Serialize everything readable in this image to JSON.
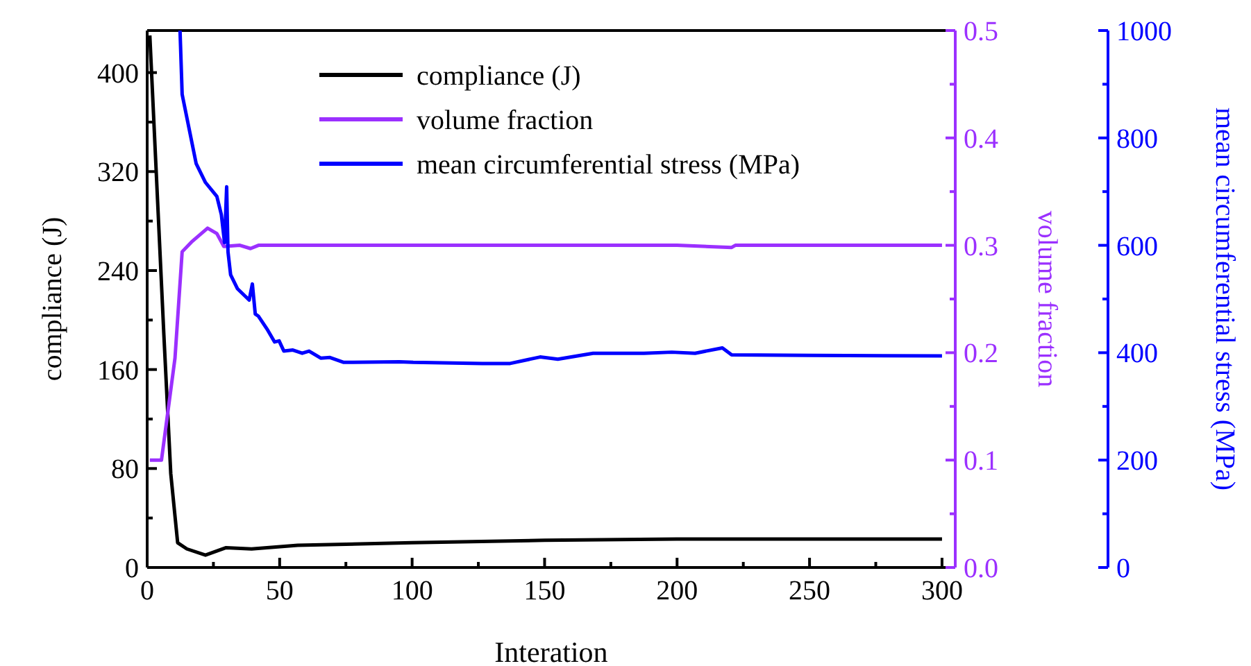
{
  "chart_data": {
    "type": "line",
    "xlabel": "Interation",
    "ylabel": "compliance (J)",
    "y2label": "volume fraction",
    "y3label": "mean circumferential stress (MPa)",
    "xlim": [
      0,
      305
    ],
    "xticks": [
      0,
      {
        "value": 25,
        "label": null
      },
      50,
      {
        "value": 75,
        "label": null
      },
      100,
      {
        "value": 125,
        "label": null
      },
      150,
      {
        "value": 175,
        "label": null
      },
      200,
      {
        "value": 225,
        "label": null
      },
      250,
      {
        "value": 275,
        "label": null
      },
      300
    ],
    "ylim": [
      0,
      434
    ],
    "yticks": [
      0,
      {
        "value": 40,
        "label": null
      },
      80,
      {
        "value": 120,
        "label": null
      },
      160,
      {
        "value": 200,
        "label": null
      },
      240,
      {
        "value": 280,
        "label": null
      },
      320,
      {
        "value": 360,
        "label": null
      },
      400
    ],
    "y2lim": [
      0,
      0.5
    ],
    "y2ticks": [
      {
        "value": 0,
        "label": "0.0"
      },
      {
        "value": 0.05,
        "label": null
      },
      0.1,
      {
        "value": 0.15,
        "label": null
      },
      0.2,
      {
        "value": 0.25,
        "label": null
      },
      0.3,
      {
        "value": 0.35,
        "label": null
      },
      0.4,
      {
        "value": 0.45,
        "label": null
      },
      0.5
    ],
    "y3lim": [
      0,
      1000
    ],
    "y3ticks": [
      0,
      {
        "value": 100,
        "label": null
      },
      200,
      {
        "value": 300,
        "label": null
      },
      400,
      {
        "value": 500,
        "label": null
      },
      600,
      {
        "value": 700,
        "label": null
      },
      800,
      {
        "value": 900,
        "label": null
      },
      1000
    ],
    "legend": "top",
    "grid": false,
    "line_style": "solid",
    "series": [
      {
        "name": "compliance (J)",
        "color": "#000000",
        "x": [
          1,
          6.3,
          8.9,
          11.5,
          15,
          22,
          29.8,
          39.4,
          56.8,
          100,
          150,
          200,
          250,
          300
        ],
        "values": [
          430,
          188,
          76,
          20,
          15,
          10,
          16,
          15,
          18,
          20,
          22,
          23,
          23,
          23
        ]
      },
      {
        "name": "volume fraction",
        "color": "#9b30ff",
        "axis": "y2",
        "x": [
          1,
          5.4,
          10.5,
          13.2,
          16.7,
          22.8,
          26.3,
          28.9,
          35,
          39,
          42,
          60,
          100,
          150,
          200,
          220.6,
          222,
          250,
          300
        ],
        "values": [
          0.1,
          0.1,
          0.195,
          0.294,
          0.303,
          0.316,
          0.311,
          0.299,
          0.3,
          0.297,
          0.3,
          0.3,
          0.3,
          0.3,
          0.3,
          0.298,
          0.3,
          0.3,
          0.3
        ]
      },
      {
        "name": "mean circumferential stress (MPa)",
        "color": "#0000ff",
        "axis": "y3",
        "x": [
          12.4,
          13.2,
          18.5,
          22,
          26.3,
          28,
          29.2,
          30,
          30.5,
          31.5,
          34.1,
          38.5,
          39.7,
          40.8,
          42,
          45.5,
          48.1,
          49.8,
          51.6,
          55,
          58.5,
          61.1,
          65.5,
          69,
          74.2,
          95.1,
          100.4,
          126.5,
          137,
          148.3,
          155,
          168.3,
          177,
          187.5,
          198,
          206.8,
          217.1,
          220.6,
          250,
          300
        ],
        "values": [
          1000,
          881,
          752,
          717,
          691,
          657,
          605,
          709,
          588,
          545,
          519,
          498,
          528,
          472,
          468,
          442,
          420,
          422,
          403,
          405,
          399,
          403,
          390,
          391,
          382,
          383,
          382,
          380,
          380,
          392,
          388,
          399,
          399,
          399,
          401,
          399,
          409,
          396,
          395,
          394
        ]
      }
    ]
  }
}
